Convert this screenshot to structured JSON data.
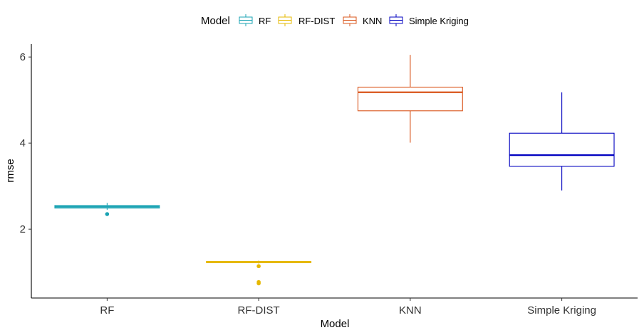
{
  "chart_data": {
    "type": "box",
    "xlabel": "Model",
    "ylabel": "rmse",
    "ylim": [
      0.4,
      6.3
    ],
    "yticks": [
      2,
      4,
      6
    ],
    "grid": false,
    "legend": {
      "title": "Model",
      "position": "top",
      "entries": [
        "RF",
        "RF-DIST",
        "KNN",
        "Simple Kriging"
      ]
    },
    "categories": [
      "RF",
      "RF-DIST",
      "KNN",
      "Simple Kriging"
    ],
    "series": [
      {
        "name": "RF",
        "color": "#1aa3b3",
        "q1": 2.49,
        "median": 2.52,
        "q3": 2.55,
        "whisker_low": 2.45,
        "whisker_high": 2.61,
        "outliers": [
          2.35
        ]
      },
      {
        "name": "RF-DIST",
        "color": "#e6b800",
        "q1": 1.22,
        "median": 1.23,
        "q3": 1.25,
        "whisker_low": 1.2,
        "whisker_high": 1.27,
        "outliers": [
          1.14,
          0.77,
          0.74
        ]
      },
      {
        "name": "KNN",
        "color": "#d9541a",
        "q1": 4.75,
        "median": 5.18,
        "q3": 5.3,
        "whisker_low": 4.01,
        "whisker_high": 6.05,
        "outliers": []
      },
      {
        "name": "Simple Kriging",
        "color": "#0000c0",
        "q1": 3.46,
        "median": 3.72,
        "q3": 4.23,
        "whisker_low": 2.9,
        "whisker_high": 5.18,
        "outliers": []
      }
    ]
  }
}
